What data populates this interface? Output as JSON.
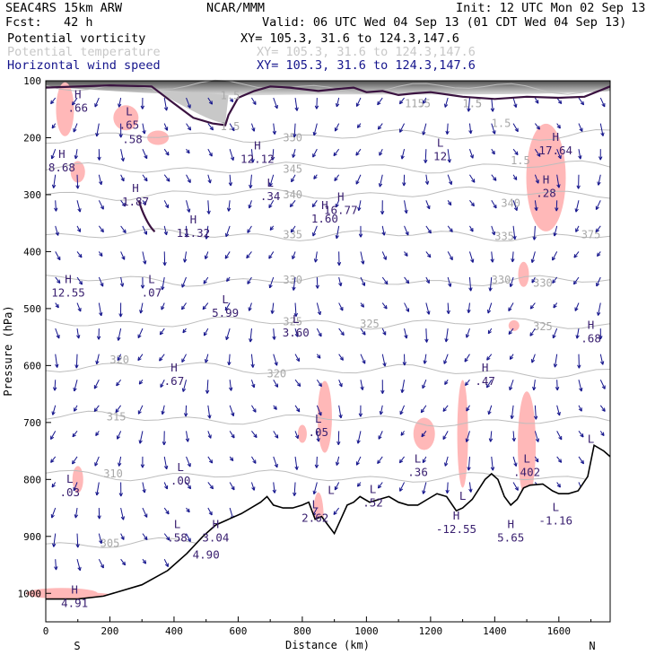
{
  "header": {
    "model": "SEAC4RS 15km ARW",
    "org": "NCAR/MMM",
    "init": "Init: 12 UTC Mon 02 Sep 13",
    "fcst": "Fcst:   42 h",
    "valid": "Valid: 06 UTC Wed 04 Sep 13 (01 CDT Wed 04 Sep 13)",
    "legend": [
      {
        "field": "Potential vorticity",
        "xy": "XY= 105.3, 31.6 to 124.3,147.6",
        "color": "#000000"
      },
      {
        "field": "Potential temperature",
        "xy": "XY= 105.3, 31.6 to 124.3,147.6",
        "color": "#c8c8c8"
      },
      {
        "field": "Horizontal wind speed",
        "xy": "XY= 105.3, 31.6 to 124.3,147.6",
        "color": "#14148c"
      }
    ]
  },
  "chart_data": {
    "type": "cross-section",
    "xlabel": "Distance (km)",
    "ylabel": "Pressure (hPa)",
    "xlim": [
      0,
      1760
    ],
    "ylim": [
      1050,
      100
    ],
    "x_ticks": [
      0,
      200,
      400,
      600,
      800,
      1000,
      1200,
      1400,
      1600
    ],
    "y_ticks": [
      100,
      200,
      300,
      400,
      500,
      600,
      700,
      800,
      900,
      1000
    ],
    "x_tick_labels": [
      "0",
      "200",
      "400",
      "600",
      "800",
      "1000",
      "1200",
      "1400",
      "1600"
    ],
    "y_tick_labels": [
      "100",
      "200",
      "300",
      "400",
      "500",
      "600",
      "700",
      "800",
      "900",
      "1000"
    ],
    "end_labels": {
      "left": "S",
      "right": "N"
    },
    "terrain": [
      [
        0,
        1010
      ],
      [
        100,
        1010
      ],
      [
        180,
        1005
      ],
      [
        300,
        985
      ],
      [
        380,
        960
      ],
      [
        440,
        930
      ],
      [
        490,
        900
      ],
      [
        530,
        880
      ],
      [
        570,
        870
      ],
      [
        610,
        860
      ],
      [
        640,
        850
      ],
      [
        670,
        840
      ],
      [
        690,
        830
      ],
      [
        710,
        845
      ],
      [
        740,
        850
      ],
      [
        770,
        850
      ],
      [
        800,
        845
      ],
      [
        820,
        840
      ],
      [
        840,
        870
      ],
      [
        860,
        865
      ],
      [
        880,
        880
      ],
      [
        900,
        895
      ],
      [
        920,
        870
      ],
      [
        940,
        845
      ],
      [
        960,
        840
      ],
      [
        980,
        830
      ],
      [
        1010,
        840
      ],
      [
        1040,
        835
      ],
      [
        1070,
        830
      ],
      [
        1100,
        840
      ],
      [
        1130,
        845
      ],
      [
        1160,
        845
      ],
      [
        1190,
        835
      ],
      [
        1220,
        825
      ],
      [
        1250,
        830
      ],
      [
        1280,
        855
      ],
      [
        1300,
        850
      ],
      [
        1330,
        835
      ],
      [
        1370,
        800
      ],
      [
        1390,
        790
      ],
      [
        1410,
        800
      ],
      [
        1430,
        830
      ],
      [
        1450,
        845
      ],
      [
        1470,
        835
      ],
      [
        1490,
        815
      ],
      [
        1510,
        810
      ],
      [
        1550,
        808
      ],
      [
        1580,
        820
      ],
      [
        1600,
        825
      ],
      [
        1630,
        825
      ],
      [
        1660,
        820
      ],
      [
        1690,
        795
      ],
      [
        1710,
        740
      ],
      [
        1740,
        750
      ],
      [
        1760,
        760
      ]
    ],
    "theta_labels": [
      {
        "value": "350",
        "x": 770,
        "p": 200
      },
      {
        "value": "345",
        "x": 770,
        "p": 255
      },
      {
        "value": "340",
        "x": 770,
        "p": 300
      },
      {
        "value": "340",
        "x": 1450,
        "p": 315
      },
      {
        "value": "335",
        "x": 770,
        "p": 370
      },
      {
        "value": "335",
        "x": 1430,
        "p": 373
      },
      {
        "value": "330",
        "x": 770,
        "p": 450
      },
      {
        "value": "330",
        "x": 1420,
        "p": 450
      },
      {
        "value": "330",
        "x": 1550,
        "p": 455
      },
      {
        "value": "325",
        "x": 770,
        "p": 523
      },
      {
        "value": "325",
        "x": 1010,
        "p": 527
      },
      {
        "value": "325",
        "x": 1550,
        "p": 532
      },
      {
        "value": "320",
        "x": 230,
        "p": 590
      },
      {
        "value": "320",
        "x": 720,
        "p": 614
      },
      {
        "value": "315",
        "x": 220,
        "p": 690
      },
      {
        "value": "310",
        "x": 210,
        "p": 790
      },
      {
        "value": "305",
        "x": 200,
        "p": 912
      },
      {
        "value": "375",
        "x": 1700,
        "p": 370
      },
      {
        "value": "1.5",
        "x": 1170,
        "p": 140
      },
      {
        "value": "1.5",
        "x": 1330,
        "p": 140
      },
      {
        "value": "1.5",
        "x": 1420,
        "p": 175
      },
      {
        "value": "1.5",
        "x": 1480,
        "p": 240
      }
    ],
    "pv_labels": [
      {
        "value": "1.5",
        "x": 575,
        "p": 126
      },
      {
        "value": "1.5",
        "x": 575,
        "p": 180
      },
      {
        "value": "1.5",
        "x": 1150,
        "p": 140
      },
      {
        "value": "1.5",
        "x": 1330,
        "p": 140
      }
    ],
    "extrema": [
      {
        "type": "H",
        "value": ".66",
        "x": 100,
        "p": 140
      },
      {
        "type": "L",
        "value": ".65",
        "x": 260,
        "p": 170
      },
      {
        "type": "",
        "value": ".58",
        "x": 270,
        "p": 195
      },
      {
        "type": "H",
        "value": "8.68",
        "x": 50,
        "p": 245
      },
      {
        "type": "H",
        "value": "1.87",
        "x": 280,
        "p": 305
      },
      {
        "type": "H",
        "value": "12.12",
        "x": 660,
        "p": 230
      },
      {
        "type": "L",
        "value": ".34",
        "x": 700,
        "p": 295
      },
      {
        "type": "H",
        "value": "1.60",
        "x": 870,
        "p": 335
      },
      {
        "type": "H",
        "value": "16.77",
        "x": 920,
        "p": 320
      },
      {
        "type": "L",
        "value": "12",
        "x": 1230,
        "p": 225
      },
      {
        "type": "H",
        "value": "17.64",
        "x": 1590,
        "p": 215
      },
      {
        "type": "H",
        "value": ".28",
        "x": 1560,
        "p": 290
      },
      {
        "type": "H",
        "value": "11.32",
        "x": 460,
        "p": 360
      },
      {
        "type": "L",
        "value": ".07",
        "x": 330,
        "p": 465
      },
      {
        "type": "H",
        "value": "12.55",
        "x": 70,
        "p": 465
      },
      {
        "type": "L",
        "value": "5.99",
        "x": 560,
        "p": 500
      },
      {
        "type": "L",
        "value": "3.60",
        "x": 780,
        "p": 535
      },
      {
        "type": "H",
        "value": ".68",
        "x": 1700,
        "p": 545
      },
      {
        "type": "H",
        "value": ".67",
        "x": 400,
        "p": 620
      },
      {
        "type": "H",
        "value": ".47",
        "x": 1370,
        "p": 620
      },
      {
        "type": "L",
        "value": ".05",
        "x": 850,
        "p": 710
      },
      {
        "type": "L",
        "value": ".36",
        "x": 1160,
        "p": 780
      },
      {
        "type": "L",
        "value": ".402",
        "x": 1500,
        "p": 780
      },
      {
        "type": "L",
        "value": ".00",
        "x": 420,
        "p": 795
      },
      {
        "type": "L",
        "value": ".03",
        "x": 75,
        "p": 815
      },
      {
        "type": "L",
        "value": ".52",
        "x": 1020,
        "p": 833
      },
      {
        "type": "L",
        "value": "2.62",
        "x": 840,
        "p": 860
      },
      {
        "type": "L",
        "value": "-1.16",
        "x": 1590,
        "p": 865
      },
      {
        "type": "H",
        "value": "-12.55",
        "x": 1280,
        "p": 880
      },
      {
        "type": "H",
        "value": "5.65",
        "x": 1450,
        "p": 895
      },
      {
        "type": "L",
        "value": ".58",
        "x": 410,
        "p": 895
      },
      {
        "type": "H",
        "value": "3.04",
        "x": 530,
        "p": 895
      },
      {
        "type": "",
        "value": "4.90",
        "x": 500,
        "p": 925
      },
      {
        "type": "H",
        "value": "4.91",
        "x": 90,
        "p": 1010
      },
      {
        "type": "L",
        "value": "",
        "x": 1700,
        "p": 745
      },
      {
        "type": "L",
        "value": "",
        "x": 890,
        "p": 835
      },
      {
        "type": "L",
        "value": "",
        "x": 1300,
        "p": 845
      }
    ]
  }
}
